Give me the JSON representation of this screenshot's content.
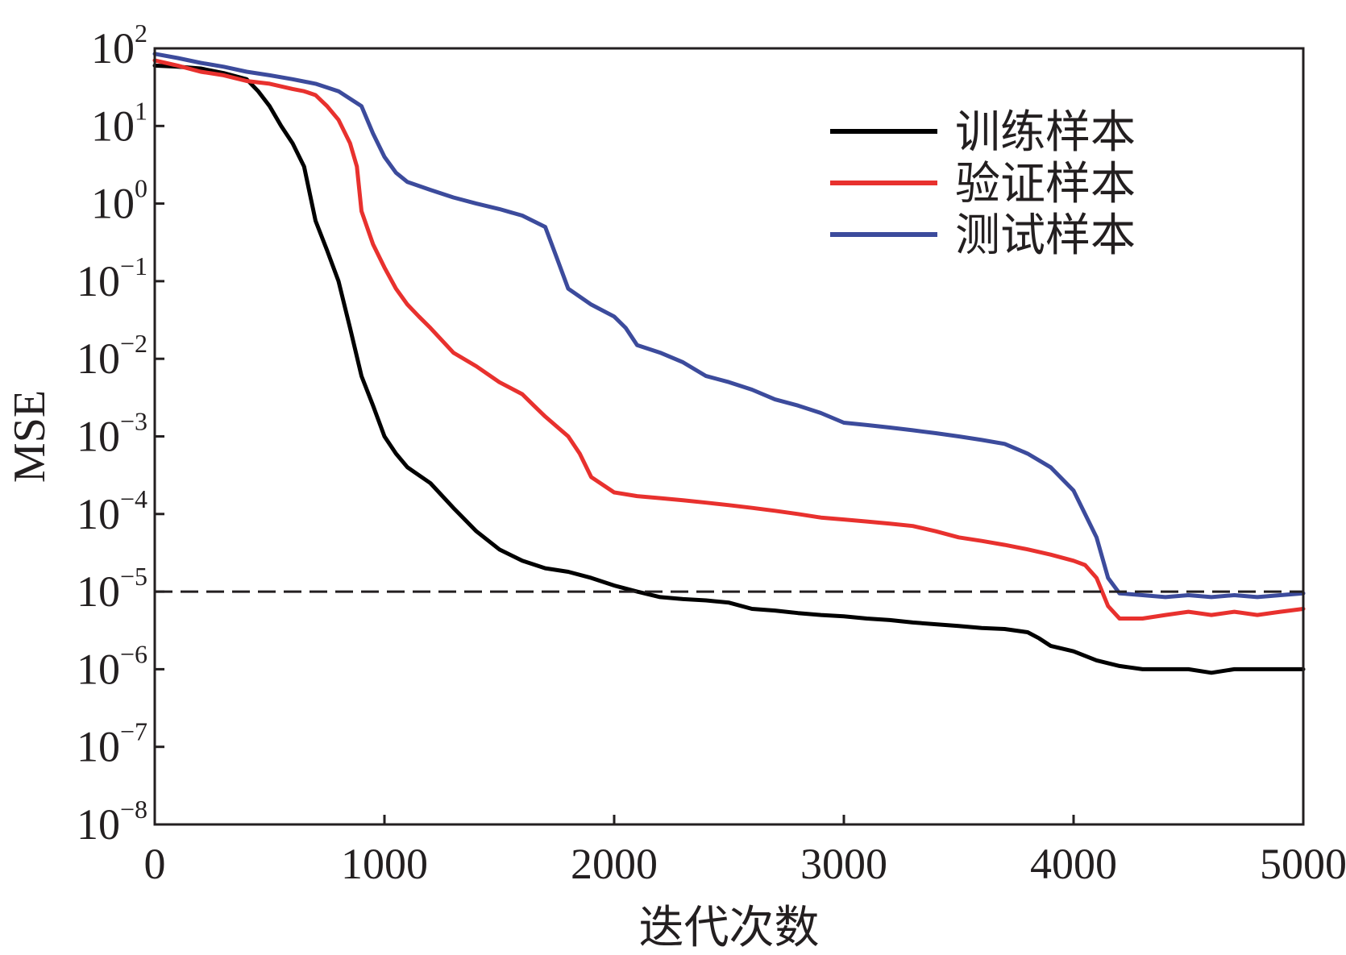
{
  "chart_data": {
    "type": "line",
    "title": "",
    "xlabel": "迭代次数",
    "ylabel": "MSE",
    "xlim": [
      0,
      5000
    ],
    "ylim": [
      1e-08,
      100
    ],
    "yscale": "log",
    "grid": false,
    "legend_position": "top-right",
    "x_ticks": [
      0,
      1000,
      2000,
      3000,
      4000,
      5000
    ],
    "x_tick_labels": [
      "0",
      "1000",
      "2000",
      "3000",
      "4000",
      "5000"
    ],
    "y_ticks": [
      100,
      10,
      1,
      0.1,
      0.01,
      0.001,
      0.0001,
      1e-05,
      1e-06,
      1e-07,
      1e-08
    ],
    "y_tick_labels": [
      {
        "base": "10",
        "exp": "2"
      },
      {
        "base": "10",
        "exp": "1"
      },
      {
        "base": "10",
        "exp": "0"
      },
      {
        "base": "10",
        "exp": "−1"
      },
      {
        "base": "10",
        "exp": "−2"
      },
      {
        "base": "10",
        "exp": "−3"
      },
      {
        "base": "10",
        "exp": "−4"
      },
      {
        "base": "10",
        "exp": "−5"
      },
      {
        "base": "10",
        "exp": "−6"
      },
      {
        "base": "10",
        "exp": "−7"
      },
      {
        "base": "10",
        "exp": "−8"
      }
    ],
    "reference_line": {
      "y": 1e-05,
      "style": "dashed",
      "color": "#231f20"
    },
    "series": [
      {
        "name": "训练样本",
        "color": "#000000",
        "points": [
          [
            0,
            60
          ],
          [
            100,
            58
          ],
          [
            200,
            55
          ],
          [
            300,
            48
          ],
          [
            400,
            40
          ],
          [
            450,
            28
          ],
          [
            500,
            18
          ],
          [
            550,
            10
          ],
          [
            600,
            6
          ],
          [
            650,
            3
          ],
          [
            700,
            0.6
          ],
          [
            750,
            0.25
          ],
          [
            800,
            0.1
          ],
          [
            850,
            0.025
          ],
          [
            900,
            0.006
          ],
          [
            950,
            0.0025
          ],
          [
            1000,
            0.001
          ],
          [
            1050,
            0.0006
          ],
          [
            1100,
            0.0004
          ],
          [
            1200,
            0.00025
          ],
          [
            1300,
            0.00012
          ],
          [
            1400,
            6e-05
          ],
          [
            1500,
            3.5e-05
          ],
          [
            1600,
            2.5e-05
          ],
          [
            1700,
            2e-05
          ],
          [
            1800,
            1.8e-05
          ],
          [
            1900,
            1.5e-05
          ],
          [
            2000,
            1.2e-05
          ],
          [
            2100,
            1e-05
          ],
          [
            2200,
            8.5e-06
          ],
          [
            2300,
            8e-06
          ],
          [
            2400,
            7.7e-06
          ],
          [
            2500,
            7.2e-06
          ],
          [
            2600,
            6e-06
          ],
          [
            2700,
            5.7e-06
          ],
          [
            2800,
            5.3e-06
          ],
          [
            2900,
            5e-06
          ],
          [
            3000,
            4.8e-06
          ],
          [
            3100,
            4.5e-06
          ],
          [
            3200,
            4.3e-06
          ],
          [
            3300,
            4e-06
          ],
          [
            3400,
            3.8e-06
          ],
          [
            3500,
            3.6e-06
          ],
          [
            3600,
            3.4e-06
          ],
          [
            3700,
            3.3e-06
          ],
          [
            3800,
            3e-06
          ],
          [
            3850,
            2.5e-06
          ],
          [
            3900,
            2e-06
          ],
          [
            4000,
            1.7e-06
          ],
          [
            4100,
            1.3e-06
          ],
          [
            4200,
            1.1e-06
          ],
          [
            4300,
            1e-06
          ],
          [
            4400,
            1e-06
          ],
          [
            4500,
            1e-06
          ],
          [
            4600,
            9e-07
          ],
          [
            4700,
            1e-06
          ],
          [
            4800,
            1e-06
          ],
          [
            4900,
            1e-06
          ],
          [
            5000,
            1e-06
          ]
        ]
      },
      {
        "name": "验证样本",
        "color": "#e8312e",
        "points": [
          [
            0,
            70
          ],
          [
            100,
            60
          ],
          [
            200,
            50
          ],
          [
            300,
            45
          ],
          [
            400,
            38
          ],
          [
            500,
            35
          ],
          [
            600,
            30
          ],
          [
            650,
            28
          ],
          [
            700,
            25
          ],
          [
            750,
            18
          ],
          [
            800,
            12
          ],
          [
            850,
            6
          ],
          [
            880,
            3
          ],
          [
            900,
            0.8
          ],
          [
            950,
            0.3
          ],
          [
            1000,
            0.15
          ],
          [
            1050,
            0.08
          ],
          [
            1100,
            0.05
          ],
          [
            1150,
            0.035
          ],
          [
            1200,
            0.025
          ],
          [
            1300,
            0.012
          ],
          [
            1400,
            0.008
          ],
          [
            1500,
            0.005
          ],
          [
            1600,
            0.0035
          ],
          [
            1650,
            0.0025
          ],
          [
            1700,
            0.0018
          ],
          [
            1800,
            0.001
          ],
          [
            1850,
            0.0006
          ],
          [
            1900,
            0.0003
          ],
          [
            2000,
            0.00019
          ],
          [
            2100,
            0.00017
          ],
          [
            2200,
            0.00016
          ],
          [
            2300,
            0.00015
          ],
          [
            2400,
            0.00014
          ],
          [
            2500,
            0.00013
          ],
          [
            2600,
            0.00012
          ],
          [
            2700,
            0.00011
          ],
          [
            2800,
            0.0001
          ],
          [
            2900,
            9e-05
          ],
          [
            3000,
            8.5e-05
          ],
          [
            3100,
            8e-05
          ],
          [
            3200,
            7.5e-05
          ],
          [
            3300,
            7e-05
          ],
          [
            3400,
            6e-05
          ],
          [
            3500,
            5e-05
          ],
          [
            3600,
            4.5e-05
          ],
          [
            3700,
            4e-05
          ],
          [
            3800,
            3.5e-05
          ],
          [
            3900,
            3e-05
          ],
          [
            4000,
            2.5e-05
          ],
          [
            4050,
            2.2e-05
          ],
          [
            4100,
            1.5e-05
          ],
          [
            4150,
            6.5e-06
          ],
          [
            4200,
            4.5e-06
          ],
          [
            4300,
            4.5e-06
          ],
          [
            4400,
            5e-06
          ],
          [
            4500,
            5.5e-06
          ],
          [
            4600,
            5e-06
          ],
          [
            4700,
            5.5e-06
          ],
          [
            4800,
            5e-06
          ],
          [
            4900,
            5.5e-06
          ],
          [
            5000,
            6e-06
          ]
        ]
      },
      {
        "name": "测试样本",
        "color": "#3c4b9c",
        "points": [
          [
            0,
            85
          ],
          [
            100,
            75
          ],
          [
            200,
            65
          ],
          [
            300,
            58
          ],
          [
            400,
            50
          ],
          [
            500,
            45
          ],
          [
            600,
            40
          ],
          [
            700,
            35
          ],
          [
            800,
            28
          ],
          [
            900,
            18
          ],
          [
            950,
            8
          ],
          [
            1000,
            4
          ],
          [
            1050,
            2.5
          ],
          [
            1100,
            1.9
          ],
          [
            1200,
            1.5
          ],
          [
            1300,
            1.2
          ],
          [
            1400,
            1.0
          ],
          [
            1500,
            0.85
          ],
          [
            1600,
            0.7
          ],
          [
            1700,
            0.5
          ],
          [
            1750,
            0.2
          ],
          [
            1800,
            0.08
          ],
          [
            1900,
            0.05
          ],
          [
            2000,
            0.035
          ],
          [
            2050,
            0.025
          ],
          [
            2100,
            0.015
          ],
          [
            2200,
            0.012
          ],
          [
            2300,
            0.009
          ],
          [
            2400,
            0.006
          ],
          [
            2500,
            0.005
          ],
          [
            2600,
            0.004
          ],
          [
            2700,
            0.003
          ],
          [
            2800,
            0.0025
          ],
          [
            2900,
            0.002
          ],
          [
            3000,
            0.0015
          ],
          [
            3100,
            0.0014
          ],
          [
            3200,
            0.0013
          ],
          [
            3300,
            0.0012
          ],
          [
            3400,
            0.0011
          ],
          [
            3500,
            0.001
          ],
          [
            3600,
            0.0009
          ],
          [
            3700,
            0.0008
          ],
          [
            3800,
            0.0006
          ],
          [
            3900,
            0.0004
          ],
          [
            4000,
            0.0002
          ],
          [
            4100,
            5e-05
          ],
          [
            4150,
            1.5e-05
          ],
          [
            4200,
            9.5e-06
          ],
          [
            4300,
            9e-06
          ],
          [
            4400,
            8.5e-06
          ],
          [
            4500,
            9e-06
          ],
          [
            4600,
            8.5e-06
          ],
          [
            4700,
            9e-06
          ],
          [
            4800,
            8.5e-06
          ],
          [
            4900,
            9e-06
          ],
          [
            5000,
            9.5e-06
          ]
        ]
      }
    ]
  }
}
